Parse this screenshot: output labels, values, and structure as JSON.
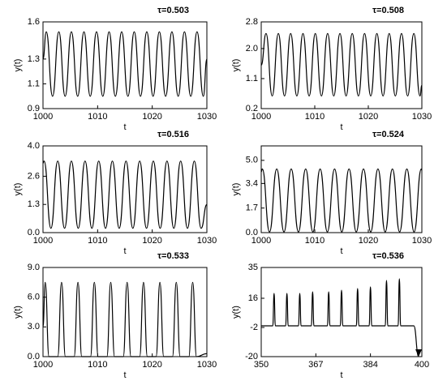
{
  "chart_data": [
    {
      "type": "line",
      "title": "τ=0.503",
      "x_label": "t",
      "y_label": "y(t)",
      "x": [
        1000,
        1000.6,
        1001.75,
        1002.9,
        1004.05,
        1005.2,
        1006.35,
        1007.5,
        1008.65,
        1009.8,
        1010.95,
        1012.1,
        1013.25,
        1014.4,
        1015.55,
        1016.7,
        1017.85,
        1019.0,
        1020.15,
        1021.3,
        1022.45,
        1023.6,
        1024.75,
        1025.9,
        1027.05,
        1028.2,
        1029.35,
        1030
      ],
      "series": [
        {
          "color": "#000000",
          "values": [
            1.3,
            1.52,
            1.0,
            1.52,
            1.0,
            1.52,
            1.0,
            1.52,
            1.0,
            1.52,
            1.0,
            1.52,
            1.0,
            1.52,
            1.0,
            1.52,
            1.0,
            1.52,
            1.0,
            1.52,
            1.0,
            1.52,
            1.0,
            1.52,
            1.0,
            1.52,
            1.0,
            1.3
          ]
        }
      ],
      "xlim": [
        1000,
        1030
      ],
      "xticks": [
        1000,
        1010,
        1020,
        1030
      ],
      "ylim": [
        0.9,
        1.6
      ],
      "yticks": [
        0.9,
        1.1,
        1.3,
        1.6
      ]
    },
    {
      "type": "line",
      "title": "τ=0.508",
      "x_label": "t",
      "y_label": "y(t)",
      "x": [
        1000,
        1000.9,
        1002.05,
        1003.2,
        1004.35,
        1005.5,
        1006.65,
        1007.8,
        1008.95,
        1010.1,
        1011.25,
        1012.4,
        1013.55,
        1014.7,
        1015.85,
        1017.0,
        1018.15,
        1019.3,
        1020.45,
        1021.6,
        1022.75,
        1023.9,
        1025.05,
        1026.2,
        1027.35,
        1028.5,
        1029.65,
        1030
      ],
      "series": [
        {
          "color": "#000000",
          "values": [
            1.5,
            2.45,
            0.58,
            2.45,
            0.58,
            2.45,
            0.58,
            2.45,
            0.58,
            2.45,
            0.58,
            2.45,
            0.58,
            2.45,
            0.58,
            2.45,
            0.58,
            2.45,
            0.58,
            2.45,
            0.58,
            2.45,
            0.58,
            2.45,
            0.58,
            2.45,
            0.58,
            0.9
          ]
        }
      ],
      "xlim": [
        1000,
        1030
      ],
      "xticks": [
        1000,
        1010,
        1020,
        1030
      ],
      "ylim": [
        0.2,
        2.8
      ],
      "yticks": [
        0.2,
        1.1,
        {
          "value": 2,
          "label": "2.0"
        },
        2.8
      ]
    },
    {
      "type": "line",
      "title": "τ=0.516",
      "x_label": "t",
      "y_label": "y(t)",
      "x": [
        1000,
        1000.2,
        1001.45,
        1002.7,
        1003.95,
        1005.2,
        1006.45,
        1007.7,
        1008.95,
        1010.2,
        1011.45,
        1012.7,
        1013.95,
        1015.2,
        1016.45,
        1017.7,
        1018.95,
        1020.2,
        1021.45,
        1022.7,
        1023.95,
        1025.2,
        1026.45,
        1027.7,
        1028.95,
        1030
      ],
      "series": [
        {
          "color": "#000000",
          "values": [
            3.2,
            3.3,
            0.2,
            3.3,
            0.2,
            3.3,
            0.2,
            3.3,
            0.2,
            3.3,
            0.2,
            3.3,
            0.2,
            3.3,
            0.2,
            3.3,
            0.2,
            3.3,
            0.2,
            3.3,
            0.2,
            3.3,
            0.2,
            3.3,
            0.2,
            1.3
          ]
        }
      ],
      "xlim": [
        1000,
        1030
      ],
      "xticks": [
        1000,
        1010,
        1020,
        1030
      ],
      "ylim": [
        0,
        4
      ],
      "yticks": [
        {
          "value": 0,
          "label": "0.0"
        },
        1.3,
        2.6,
        {
          "value": 4,
          "label": "4.0"
        }
      ]
    },
    {
      "type": "line",
      "title": "τ=0.524",
      "x_label": "t",
      "y_label": "y(t)",
      "x": [
        1000,
        1000.2,
        1001.55,
        1002.9,
        1004.25,
        1005.6,
        1006.95,
        1008.3,
        1009.65,
        1011.0,
        1012.35,
        1013.7,
        1015.05,
        1016.4,
        1017.75,
        1019.1,
        1020.45,
        1021.8,
        1023.15,
        1024.5,
        1025.85,
        1027.2,
        1028.55,
        1029.9,
        1030
      ],
      "series": [
        {
          "color": "#000000",
          "values": [
            4.2,
            4.4,
            0.05,
            4.4,
            0.05,
            4.4,
            0.05,
            4.4,
            0.05,
            4.4,
            0.05,
            4.4,
            0.05,
            4.4,
            0.05,
            4.4,
            0.05,
            4.4,
            0.05,
            4.4,
            0.05,
            4.4,
            0.05,
            4.4,
            4.3
          ]
        }
      ],
      "xlim": [
        1000,
        1030
      ],
      "xticks": [
        1000,
        1010,
        1020,
        1030
      ],
      "ylim": [
        0,
        6
      ],
      "yticks": [
        {
          "value": 0,
          "label": "0.0"
        },
        1.7,
        3.4,
        {
          "value": 5,
          "label": "5.0"
        }
      ]
    },
    {
      "type": "line",
      "title": "τ=0.533",
      "x_label": "t",
      "y_label": "y(t)",
      "x": [
        1000,
        1000.4,
        1001.1,
        1002.7,
        1003.4,
        1004.1,
        1005.7,
        1006.4,
        1007.1,
        1008.7,
        1009.4,
        1010.1,
        1011.7,
        1012.4,
        1013.1,
        1014.7,
        1015.4,
        1016.1,
        1017.7,
        1018.4,
        1019.1,
        1020.7,
        1021.4,
        1022.1,
        1023.7,
        1024.4,
        1025.1,
        1026.7,
        1027.4,
        1028.1,
        1030
      ],
      "series": [
        {
          "color": "#000000",
          "values": [
            3.0,
            7.5,
            0,
            0,
            7.5,
            0,
            0,
            7.5,
            0,
            0,
            7.5,
            0,
            0,
            7.5,
            0,
            0,
            7.5,
            0,
            0,
            7.5,
            0,
            0,
            7.5,
            0,
            0,
            7.5,
            0,
            0,
            7.5,
            0,
            0.3
          ]
        }
      ],
      "xlim": [
        1000,
        1030
      ],
      "xticks": [
        1000,
        1010,
        1020,
        1030
      ],
      "ylim": [
        0,
        9
      ],
      "yticks": [
        {
          "value": 0,
          "label": "0.0"
        },
        {
          "value": 3,
          "label": "3.0"
        },
        {
          "value": 6,
          "label": "6.0"
        },
        {
          "value": 9,
          "label": "9.0"
        }
      ]
    },
    {
      "type": "line",
      "title": "τ=0.536",
      "x_label": "t",
      "y_label": "y(t)",
      "x": [
        350,
        353.6,
        354,
        354.4,
        357.6,
        358,
        358.4,
        361.6,
        362,
        362.4,
        365.6,
        366,
        366.4,
        370.6,
        371,
        371.4,
        374.6,
        375,
        375.4,
        379.6,
        380,
        380.4,
        383.6,
        384,
        384.4,
        388.6,
        389,
        389.4,
        392.6,
        393,
        393.4,
        397.5,
        399
      ],
      "series": [
        {
          "color": "#000000",
          "values": [
            -1,
            -1,
            19,
            -1,
            -1,
            19,
            -1,
            -1,
            19,
            -1,
            -1,
            20,
            -1,
            -1,
            20,
            -1,
            -1,
            21,
            -1,
            -1,
            22,
            -1,
            -1,
            23,
            -1,
            -1,
            27,
            -1,
            -1,
            28,
            -1,
            -1,
            -20
          ]
        }
      ],
      "xlim": [
        350,
        400
      ],
      "xticks": [
        350,
        367,
        384,
        400
      ],
      "ylim": [
        -20,
        35
      ],
      "yticks": [
        -20,
        -2,
        16,
        35
      ]
    }
  ]
}
